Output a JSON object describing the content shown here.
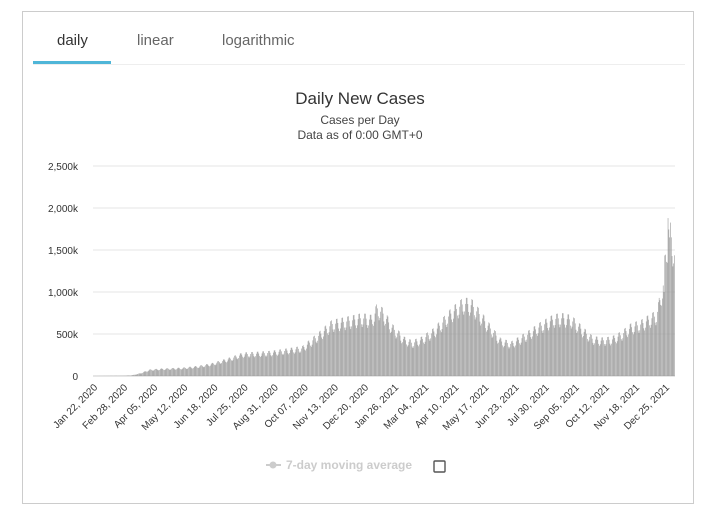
{
  "tabs": [
    {
      "label": "daily",
      "active": true
    },
    {
      "label": "linear",
      "active": false
    },
    {
      "label": "logarithmic",
      "active": false
    }
  ],
  "accent_color": "#4fb6d8",
  "bar_color": "#999999",
  "legend": {
    "label": "7-day moving average",
    "color": "#cccccc",
    "checkbox_checked": false
  },
  "chart_data": {
    "type": "bar",
    "title": "Daily New Cases",
    "subtitle": "Cases per Day",
    "subtitle2": "Data as of 0:00 GMT+0",
    "ylim": [
      0,
      2500000
    ],
    "y_ticks": [
      {
        "value": 0,
        "label": "0"
      },
      {
        "value": 500000,
        "label": "500k"
      },
      {
        "value": 1000000,
        "label": "1,000k"
      },
      {
        "value": 1500000,
        "label": "1,500k"
      },
      {
        "value": 2000000,
        "label": "2,000k"
      },
      {
        "value": 2500000,
        "label": "2,500k"
      }
    ],
    "x_start": "2020-01-22",
    "x_end": "2022-01-11",
    "x_ticks": [
      "Jan 22, 2020",
      "Feb 28, 2020",
      "Apr 05, 2020",
      "May 12, 2020",
      "Jun 18, 2020",
      "Jul 25, 2020",
      "Aug 31, 2020",
      "Oct 07, 2020",
      "Nov 13, 2020",
      "Dec 20, 2020",
      "Jan 26, 2021",
      "Mar 04, 2021",
      "Apr 10, 2021",
      "May 17, 2021",
      "Jun 23, 2021",
      "Jul 30, 2021",
      "Sep 05, 2021",
      "Oct 12, 2021",
      "Nov 18, 2021",
      "Dec 25, 2021"
    ],
    "grid": true,
    "weekly_anchors": [
      [
        "2020-01-22",
        0
      ],
      [
        "2020-02-15",
        2000
      ],
      [
        "2020-02-28",
        3000
      ],
      [
        "2020-03-10",
        8000
      ],
      [
        "2020-03-20",
        30000
      ],
      [
        "2020-04-01",
        70000
      ],
      [
        "2020-04-15",
        80000
      ],
      [
        "2020-05-12",
        90000
      ],
      [
        "2020-06-01",
        110000
      ],
      [
        "2020-06-18",
        140000
      ],
      [
        "2020-07-10",
        200000
      ],
      [
        "2020-07-25",
        250000
      ],
      [
        "2020-08-15",
        260000
      ],
      [
        "2020-08-31",
        270000
      ],
      [
        "2020-09-15",
        290000
      ],
      [
        "2020-10-07",
        320000
      ],
      [
        "2020-10-25",
        450000
      ],
      [
        "2020-11-13",
        600000
      ],
      [
        "2020-11-25",
        620000
      ],
      [
        "2020-12-10",
        650000
      ],
      [
        "2020-12-20",
        670000
      ],
      [
        "2021-01-01",
        650000
      ],
      [
        "2021-01-08",
        780000
      ],
      [
        "2021-01-15",
        720000
      ],
      [
        "2021-01-26",
        560000
      ],
      [
        "2021-02-10",
        420000
      ],
      [
        "2021-02-20",
        380000
      ],
      [
        "2021-03-04",
        420000
      ],
      [
        "2021-03-20",
        520000
      ],
      [
        "2021-04-10",
        730000
      ],
      [
        "2021-04-25",
        840000
      ],
      [
        "2021-05-05",
        820000
      ],
      [
        "2021-05-17",
        680000
      ],
      [
        "2021-06-01",
        500000
      ],
      [
        "2021-06-10",
        400000
      ],
      [
        "2021-06-23",
        370000
      ],
      [
        "2021-07-10",
        460000
      ],
      [
        "2021-07-30",
        580000
      ],
      [
        "2021-08-15",
        660000
      ],
      [
        "2021-08-25",
        670000
      ],
      [
        "2021-09-05",
        650000
      ],
      [
        "2021-09-20",
        520000
      ],
      [
        "2021-10-01",
        430000
      ],
      [
        "2021-10-12",
        410000
      ],
      [
        "2021-10-25",
        420000
      ],
      [
        "2021-11-05",
        470000
      ],
      [
        "2021-11-18",
        560000
      ],
      [
        "2021-12-01",
        600000
      ],
      [
        "2021-12-10",
        650000
      ],
      [
        "2021-12-20",
        700000
      ],
      [
        "2021-12-28",
        1050000
      ],
      [
        "2021-12-31",
        1400000
      ],
      [
        "2022-01-04",
        1700000
      ],
      [
        "2022-01-07",
        1600000
      ],
      [
        "2022-01-11",
        1400000
      ]
    ],
    "peaks": [
      [
        "2022-01-03",
        1880000
      ],
      [
        "2022-01-05",
        1650000
      ],
      [
        "2021-12-29",
        1000000
      ],
      [
        "2022-01-10",
        1340000
      ]
    ]
  }
}
